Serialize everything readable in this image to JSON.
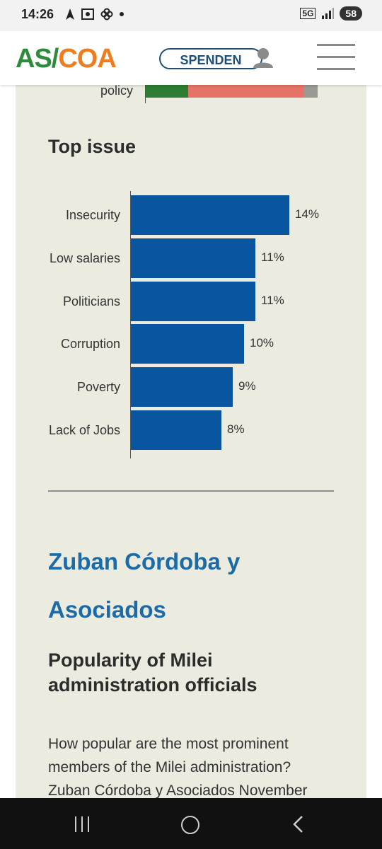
{
  "status_bar": {
    "time": "14:26",
    "network": "5G",
    "battery": "58"
  },
  "header": {
    "logo_as": "AS",
    "logo_slash": "/",
    "logo_coa": "COA",
    "donate_label": "SPENDEN"
  },
  "previous_chart": {
    "row_label": "policy",
    "segment_colors": [
      "#2e7d32",
      "#e57368",
      "#9a9a92"
    ]
  },
  "top_issue": {
    "title": "Top issue"
  },
  "chart_data": {
    "type": "bar",
    "orientation": "horizontal",
    "title": "Top issue",
    "categories": [
      "Insecurity",
      "Low salaries",
      "Politicians",
      "Corruption",
      "Poverty",
      "Lack of Jobs"
    ],
    "values": [
      14,
      11,
      11,
      10,
      9,
      8
    ],
    "value_labels": [
      "14%",
      "11%",
      "11%",
      "10%",
      "9%",
      "8%"
    ],
    "bar_color": "#0a559f",
    "xlim": [
      0,
      16
    ],
    "grid": false
  },
  "article": {
    "org_title": "Zuban Córdoba y Asociados",
    "subtitle": "Popularity of Milei administration officials",
    "paragraph": "How popular are the most prominent members of the Milei administration? Zuban Córdoba y Asociados November"
  }
}
